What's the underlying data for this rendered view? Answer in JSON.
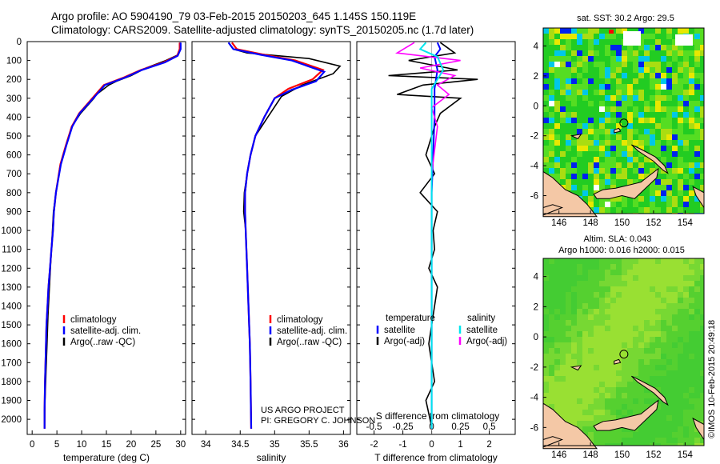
{
  "header": {
    "line1": "Argo profile: AO 5904190_79 03-Feb-2015 20150203_645 1.145S 150.119E",
    "line2": "Climatology: CARS2009. Satellite-adjusted climatology: synTS_20150205.nc (1.7d later)"
  },
  "colors": {
    "climatology": "#ff0000",
    "satellite": "#0000ff",
    "argo": "#000000",
    "sat_salinity": "#00e5ee",
    "argo_salinity": "#ff00ff",
    "land": "#f4c8a6",
    "sst_base": "#22cc22",
    "sla_base": "#44cc33"
  },
  "credit": {
    "project": "US ARGO PROJECT",
    "pi": "PI: GREGORY C. JOHNSON",
    "stamp": "©IMOS 10-Feb-2015 20:49:18"
  },
  "chart_data": [
    {
      "type": "line",
      "id": "temperature",
      "xlabel": "temperature (deg C)",
      "ylabel": "",
      "xlim": [
        -1,
        31
      ],
      "ylim": [
        2080,
        0
      ],
      "x_ticks": [
        "0",
        "5",
        "10",
        "15",
        "20",
        "25",
        "30"
      ],
      "y_ticks": [
        "0",
        "100",
        "200",
        "300",
        "400",
        "500",
        "600",
        "700",
        "800",
        "900",
        "1000",
        "1100",
        "1200",
        "1300",
        "1400",
        "1500",
        "1600",
        "1700",
        "1800",
        "1900",
        "2000"
      ],
      "legend": [
        "climatology",
        "satellite-adj. clim.",
        "Argo(..raw -QC)"
      ],
      "series": [
        {
          "name": "climatology",
          "x": [
            29.8,
            29.8,
            29.3,
            26.5,
            22,
            18.5,
            14.5,
            13,
            9.5,
            8,
            6.8,
            5.7,
            4.8,
            4.4,
            4.2,
            3.9,
            3.6,
            3.3,
            3.1,
            2.9,
            2.8,
            2.7,
            2.6,
            2.5,
            2.5
          ],
          "y": [
            5,
            40,
            75,
            110,
            150,
            190,
            230,
            275,
            380,
            450,
            550,
            650,
            800,
            900,
            1000,
            1100,
            1200,
            1300,
            1400,
            1500,
            1600,
            1700,
            1800,
            1950,
            2050
          ]
        },
        {
          "name": "satellite-adj. clim.",
          "x": [
            30,
            30,
            29.4,
            26.8,
            22.2,
            18.8,
            14.7,
            13.2,
            9.6,
            8.1,
            6.9,
            5.8,
            4.8,
            4.4,
            4.2,
            3.9,
            3.6,
            3.3,
            3.1,
            2.9,
            2.8,
            2.7,
            2.6,
            2.5,
            2.5
          ],
          "y": [
            5,
            40,
            75,
            110,
            150,
            190,
            230,
            275,
            380,
            450,
            550,
            650,
            800,
            900,
            1000,
            1100,
            1200,
            1300,
            1400,
            1500,
            1600,
            1700,
            1800,
            1950,
            2050
          ]
        },
        {
          "name": "Argo(..raw -QC)",
          "x": [
            29.9,
            29.8,
            29.5,
            27,
            23,
            20,
            17,
            15.5,
            14,
            13,
            12.5,
            9.8,
            8,
            6.8,
            5.7,
            4.8,
            4.3,
            3.9,
            3.5,
            3.2,
            3,
            2.8,
            2.6,
            2.5
          ],
          "y": [
            5,
            40,
            70,
            100,
            140,
            180,
            210,
            230,
            260,
            280,
            300,
            380,
            450,
            550,
            650,
            800,
            900,
            1100,
            1300,
            1450,
            1600,
            1750,
            1900,
            2040
          ]
        }
      ]
    },
    {
      "type": "line",
      "id": "salinity",
      "xlabel": "salinity",
      "xlim": [
        33.8,
        36.1
      ],
      "ylim": [
        2080,
        0
      ],
      "x_ticks": [
        "34",
        "34.5",
        "35",
        "35.5",
        "36"
      ],
      "legend": [
        "climatology",
        "satellite-adj. clim.",
        "Argo(..raw -QC)"
      ],
      "series": [
        {
          "name": "climatology",
          "x": [
            34.38,
            34.45,
            34.85,
            35.3,
            35.7,
            35.55,
            35.2,
            35,
            34.85,
            34.72,
            34.65,
            34.6,
            34.57,
            34.57,
            34.58,
            34.6,
            34.62,
            34.64,
            34.65,
            34.66
          ],
          "y": [
            5,
            40,
            70,
            100,
            150,
            200,
            250,
            300,
            400,
            500,
            600,
            700,
            800,
            900,
            1000,
            1200,
            1400,
            1600,
            1800,
            2050
          ]
        },
        {
          "name": "satellite-adj. clim.",
          "x": [
            34.33,
            34.4,
            34.8,
            35.25,
            35.72,
            35.6,
            35.25,
            35,
            34.85,
            34.72,
            34.65,
            34.6,
            34.57,
            34.57,
            34.58,
            34.6,
            34.62,
            34.64,
            34.65,
            34.66
          ],
          "y": [
            5,
            40,
            70,
            100,
            160,
            210,
            255,
            300,
            400,
            500,
            600,
            700,
            800,
            900,
            1000,
            1200,
            1400,
            1600,
            1800,
            2050
          ]
        },
        {
          "name": "Argo(..raw -QC)",
          "x": [
            34.33,
            34.4,
            34.6,
            35.5,
            35.95,
            35.85,
            35.4,
            35.1,
            34.9,
            34.72,
            34.65,
            34.6,
            34.56,
            34.55,
            34.58,
            34.6,
            34.62,
            34.64,
            34.65,
            34.66
          ],
          "y": [
            5,
            40,
            60,
            90,
            130,
            170,
            230,
            290,
            400,
            500,
            600,
            700,
            800,
            900,
            1000,
            1200,
            1400,
            1600,
            1800,
            2040
          ]
        }
      ]
    },
    {
      "type": "line",
      "id": "differences",
      "xlabel": "T difference from climatology",
      "xlabel_top": "S difference from climatology",
      "xlim": [
        -2.6,
        2.9
      ],
      "ylim": [
        2080,
        0
      ],
      "x_ticks": [
        "-2",
        "-1",
        "0",
        "1",
        "2"
      ],
      "s_ticks": [
        "-0.5",
        "-0.25",
        "0",
        "0.25",
        "0.5"
      ],
      "legend_left_title": "temperature",
      "legend_right_title": "salinity",
      "legend": [
        "satellite",
        "Argo(-adj)",
        "satellite",
        "Argo(-adj)"
      ],
      "series": [
        {
          "name": "T satellite",
          "x": [
            0.2,
            0.3,
            0.1,
            0.2,
            0.1,
            0.1,
            0.05,
            0,
            0,
            0,
            0,
            0
          ],
          "y": [
            5,
            40,
            80,
            150,
            250,
            400,
            600,
            800,
            1000,
            1400,
            1800,
            2050
          ]
        },
        {
          "name": "T Argo(-adj)",
          "x": [
            0.3,
            0.8,
            -0.8,
            0.9,
            -1.5,
            1.6,
            -0.3,
            -1.2,
            1,
            0.3,
            0.1,
            -0.2,
            0.1,
            -0.4,
            0.2,
            0.05,
            0.1,
            -0.1,
            0.2,
            0,
            -0.1,
            0.1,
            -0.2,
            0
          ],
          "y": [
            5,
            60,
            100,
            150,
            180,
            200,
            230,
            280,
            300,
            380,
            450,
            600,
            700,
            800,
            900,
            1000,
            1100,
            1200,
            1300,
            1500,
            1600,
            1800,
            1900,
            2040
          ]
        },
        {
          "name": "S satellite",
          "x": [
            -0.05,
            -0.1,
            0.05,
            0.1,
            0,
            0,
            0,
            0,
            0,
            0
          ],
          "y": [
            5,
            40,
            80,
            150,
            250,
            400,
            700,
            1000,
            1500,
            2050
          ]
        },
        {
          "name": "S Argo(-adj)",
          "x": [
            -0.15,
            -0.3,
            0.25,
            -0.1,
            0.2,
            0.05,
            0.15,
            0,
            0.05,
            0.02,
            0,
            0
          ],
          "y": [
            5,
            60,
            100,
            140,
            180,
            230,
            280,
            350,
            450,
            600,
            700,
            800
          ]
        }
      ]
    },
    {
      "type": "heatmap",
      "id": "sst_map",
      "title": "sat. SST: 30.2 Argo: 29.5",
      "x_ticks": [
        "146",
        "148",
        "150",
        "152",
        "154"
      ],
      "y_ticks": [
        "4",
        "2",
        "0",
        "-2",
        "-4",
        "-6"
      ],
      "xlim": [
        145,
        155.2
      ],
      "ylim": [
        -7.2,
        5.2
      ],
      "float_lon": 150.119,
      "float_lat": -1.145
    },
    {
      "type": "heatmap",
      "id": "sla_map",
      "title": "Altim. SLA: 0.043",
      "subtitle": "Argo h1000: 0.016 h2000: 0.015",
      "x_ticks": [
        "146",
        "148",
        "150",
        "152",
        "154"
      ],
      "y_ticks": [
        "4",
        "2",
        "0",
        "-2",
        "-4",
        "-6"
      ],
      "xlim": [
        145,
        155.2
      ],
      "ylim": [
        -7.2,
        5.2
      ],
      "float_lon": 150.119,
      "float_lat": -1.145
    }
  ]
}
